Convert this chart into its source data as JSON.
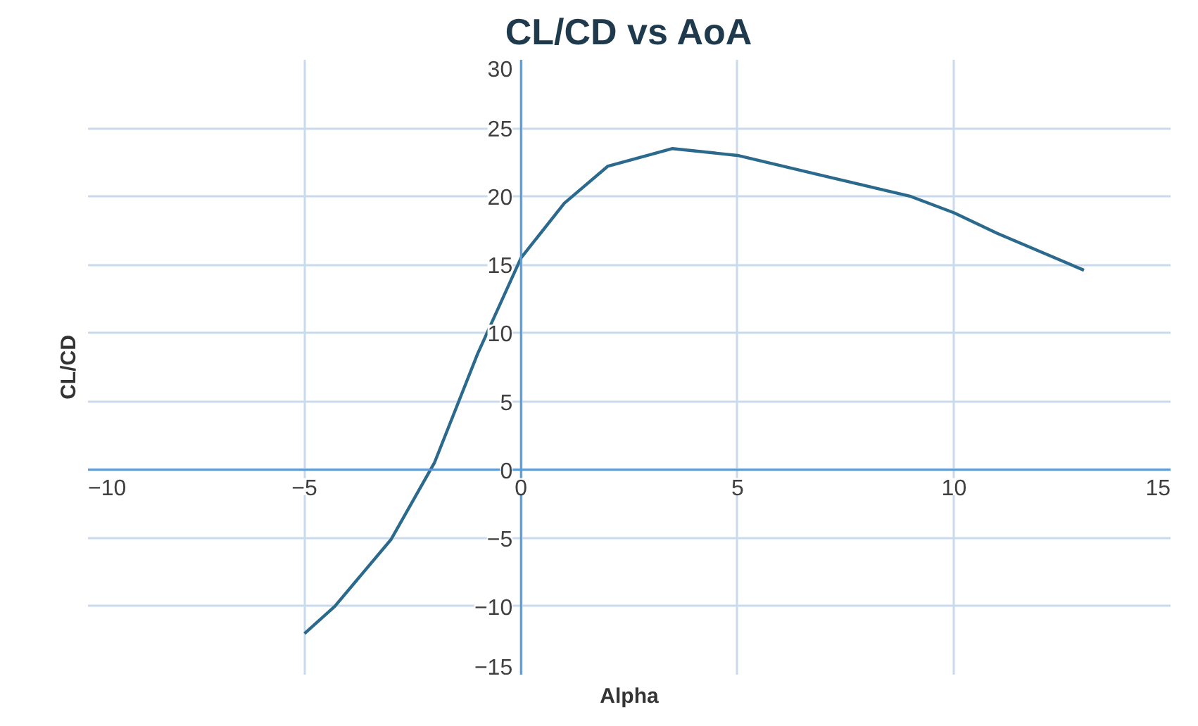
{
  "chart_data": {
    "type": "line",
    "title": "CL/CD vs AoA",
    "xlabel": "Alpha",
    "ylabel": "CL/CD",
    "x": [
      -5,
      -4.3,
      -3,
      -2,
      -1,
      0,
      1,
      2,
      3.5,
      5,
      7,
      9,
      10,
      11,
      13
    ],
    "series": [
      {
        "color": "#2b6a8c",
        "values": [
          -12,
          -10,
          -5.1,
          0.5,
          8.5,
          15.5,
          19.5,
          22.2,
          23.5,
          23,
          21.5,
          20,
          18.8,
          17.3,
          14.6
        ]
      }
    ],
    "xlim": [
      -10,
      15
    ],
    "xticks": [
      -10,
      -5,
      0,
      5,
      10,
      15
    ],
    "ylim": [
      -15,
      30
    ],
    "yticks": [
      -15,
      -10,
      -5,
      0,
      5,
      10,
      15,
      20,
      25,
      30
    ],
    "grid": true,
    "marker": "none",
    "line_style": "solid"
  }
}
